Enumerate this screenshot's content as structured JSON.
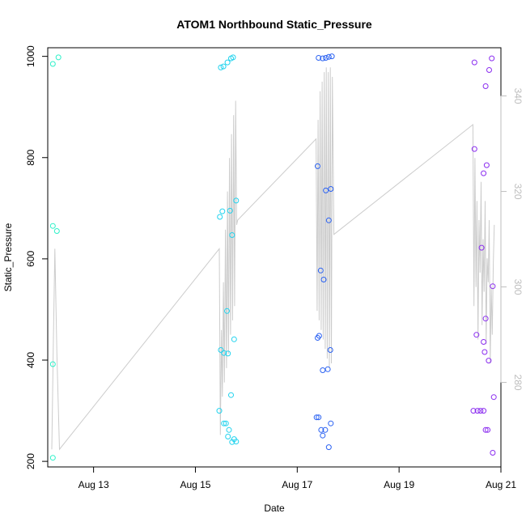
{
  "chart_data": {
    "type": "scatter",
    "title": "ATOM1 Northbound Static_Pressure",
    "xlabel": "Date",
    "ylabel": "Static_Pressure",
    "x_ticks": [
      "Aug 13",
      "Aug 15",
      "Aug 17",
      "Aug 19",
      "Aug 21"
    ],
    "xlim_days": [
      12.1,
      21.0
    ],
    "ylim": [
      189,
      1017
    ],
    "y_ticks": [
      200,
      400,
      600,
      800,
      1000
    ],
    "y2_ticks": [
      280,
      300,
      320,
      340
    ],
    "y2lim": [
      262.3,
      350.1
    ],
    "secondary_line_color": "#cccccc",
    "secondary_tick_color": "#bdbdbd",
    "grid": false,
    "series": [
      {
        "color": "#2cf1c8",
        "points": [
          [
            12.2,
            985
          ],
          [
            12.31,
            998
          ],
          [
            12.2,
            665
          ],
          [
            12.28,
            655
          ],
          [
            12.2,
            392
          ],
          [
            12.2,
            207
          ]
        ]
      },
      {
        "color": "#22d3ee",
        "points": [
          [
            15.5,
            978
          ],
          [
            15.55,
            980
          ],
          [
            15.63,
            988
          ],
          [
            15.7,
            996
          ],
          [
            15.74,
            998
          ],
          [
            15.48,
            683
          ],
          [
            15.53,
            694
          ],
          [
            15.68,
            695
          ],
          [
            15.8,
            715
          ],
          [
            15.72,
            647
          ],
          [
            15.62,
            497
          ],
          [
            15.5,
            420
          ],
          [
            15.56,
            414
          ],
          [
            15.64,
            413
          ],
          [
            15.76,
            441
          ],
          [
            15.47,
            300
          ],
          [
            15.7,
            331
          ],
          [
            15.56,
            275
          ],
          [
            15.6,
            275
          ],
          [
            15.66,
            262
          ],
          [
            15.64,
            249
          ],
          [
            15.72,
            238
          ],
          [
            15.76,
            244
          ],
          [
            15.8,
            239
          ]
        ]
      },
      {
        "color": "#2b62f2",
        "points": [
          [
            17.42,
            997
          ],
          [
            17.5,
            996
          ],
          [
            17.56,
            997
          ],
          [
            17.62,
            999
          ],
          [
            17.68,
            1000
          ],
          [
            17.4,
            783
          ],
          [
            17.56,
            735
          ],
          [
            17.66,
            738
          ],
          [
            17.62,
            676
          ],
          [
            17.46,
            577
          ],
          [
            17.52,
            559
          ],
          [
            17.4,
            444
          ],
          [
            17.43,
            448
          ],
          [
            17.65,
            420
          ],
          [
            17.5,
            380
          ],
          [
            17.6,
            382
          ],
          [
            17.38,
            287
          ],
          [
            17.42,
            287
          ],
          [
            17.47,
            262
          ],
          [
            17.55,
            262
          ],
          [
            17.5,
            251
          ],
          [
            17.66,
            275
          ],
          [
            17.62,
            228
          ]
        ]
      },
      {
        "color": "#8b2df0",
        "points": [
          [
            20.48,
            988
          ],
          [
            20.77,
            973
          ],
          [
            20.82,
            996
          ],
          [
            20.7,
            941
          ],
          [
            20.48,
            817
          ],
          [
            20.66,
            769
          ],
          [
            20.72,
            785
          ],
          [
            20.62,
            622
          ],
          [
            20.84,
            546
          ],
          [
            20.52,
            450
          ],
          [
            20.66,
            436
          ],
          [
            20.7,
            482
          ],
          [
            20.68,
            416
          ],
          [
            20.76,
            399
          ],
          [
            20.46,
            300
          ],
          [
            20.54,
            300
          ],
          [
            20.6,
            300
          ],
          [
            20.66,
            300
          ],
          [
            20.86,
            327
          ],
          [
            20.7,
            262
          ],
          [
            20.74,
            262
          ],
          [
            20.84,
            217
          ]
        ]
      }
    ],
    "secondary_line": {
      "x": [
        12.18,
        12.21,
        12.24,
        12.28,
        12.33,
        15.47,
        15.49,
        15.51,
        15.53,
        15.55,
        15.57,
        15.59,
        15.61,
        15.63,
        15.65,
        15.67,
        15.69,
        15.71,
        15.73,
        15.75,
        15.77,
        15.79,
        15.81,
        15.83,
        17.37,
        17.39,
        17.41,
        17.43,
        17.45,
        17.47,
        17.49,
        17.51,
        17.53,
        17.55,
        17.57,
        17.59,
        17.61,
        17.63,
        17.65,
        17.67,
        17.69,
        17.72,
        20.45,
        20.47,
        20.49,
        20.51,
        20.53,
        20.55,
        20.57,
        20.59,
        20.61,
        20.63,
        20.65,
        20.67,
        20.69,
        20.71,
        20.73,
        20.75,
        20.77,
        20.79,
        20.81,
        20.83,
        20.85,
        20.87
      ],
      "y": [
        266,
        288,
        308,
        286,
        266,
        308,
        269,
        291,
        277,
        301,
        280,
        312,
        283,
        320,
        286,
        327,
        290,
        332,
        293,
        336,
        296,
        339,
        313,
        314,
        331,
        295,
        335,
        293,
        341,
        291,
        343,
        289,
        345,
        287,
        346,
        285,
        345,
        283,
        346,
        284,
        344,
        311,
        334,
        296,
        327,
        300,
        318,
        289,
        314,
        303,
        322,
        292,
        310,
        299,
        318,
        288,
        306,
        301,
        314,
        284,
        300,
        290,
        305,
        313
      ]
    }
  }
}
